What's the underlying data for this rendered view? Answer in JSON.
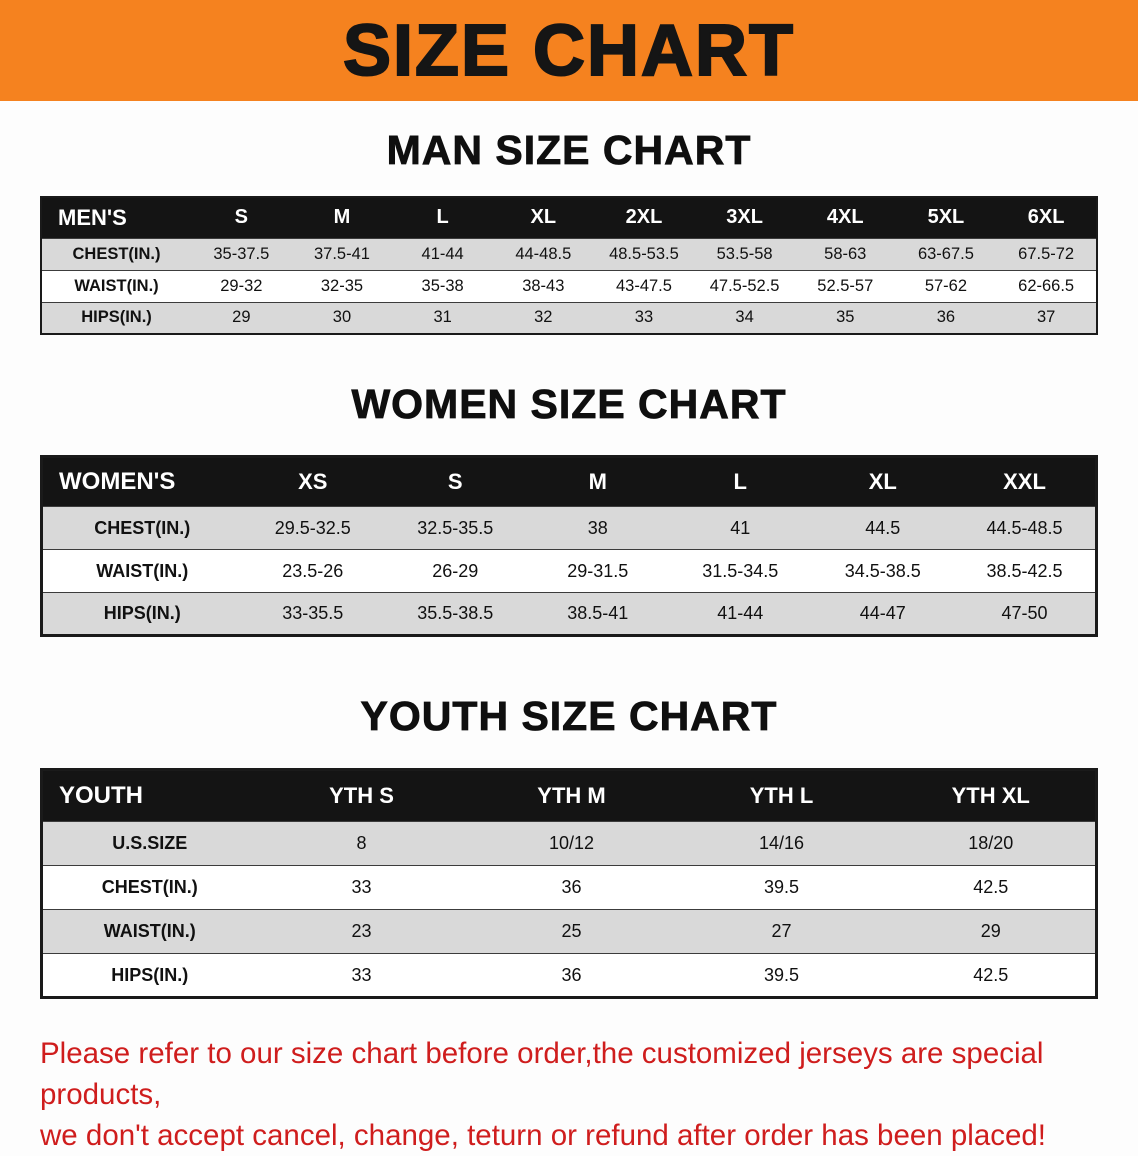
{
  "banner": {
    "title": "SIZE CHART"
  },
  "sections": [
    {
      "heading": "MAN SIZE CHART",
      "table": {
        "header": [
          "MEN'S",
          "S",
          "M",
          "L",
          "XL",
          "2XL",
          "3XL",
          "4XL",
          "5XL",
          "6XL"
        ],
        "rows": [
          {
            "label": "CHEST(IN.)",
            "values": [
              "35-37.5",
              "37.5-41",
              "41-44",
              "44-48.5",
              "48.5-53.5",
              "53.5-58",
              "58-63",
              "63-67.5",
              "67.5-72"
            ]
          },
          {
            "label": "WAIST(IN.)",
            "values": [
              "29-32",
              "32-35",
              "35-38",
              "38-43",
              "43-47.5",
              "47.5-52.5",
              "52.5-57",
              "57-62",
              "62-66.5"
            ]
          },
          {
            "label": "HIPS(IN.)",
            "values": [
              "29",
              "30",
              "31",
              "32",
              "33",
              "34",
              "35",
              "36",
              "37"
            ]
          }
        ]
      }
    },
    {
      "heading": "WOMEN SIZE CHART",
      "table": {
        "header": [
          "WOMEN'S",
          "XS",
          "S",
          "M",
          "L",
          "XL",
          "XXL"
        ],
        "rows": [
          {
            "label": "CHEST(IN.)",
            "values": [
              "29.5-32.5",
              "32.5-35.5",
              "38",
              "41",
              "44.5",
              "44.5-48.5"
            ]
          },
          {
            "label": "WAIST(IN.)",
            "values": [
              "23.5-26",
              "26-29",
              "29-31.5",
              "31.5-34.5",
              "34.5-38.5",
              "38.5-42.5"
            ]
          },
          {
            "label": "HIPS(IN.)",
            "values": [
              "33-35.5",
              "35.5-38.5",
              "38.5-41",
              "41-44",
              "44-47",
              "47-50"
            ]
          }
        ]
      }
    },
    {
      "heading": "YOUTH SIZE CHART",
      "table": {
        "header": [
          "YOUTH",
          "YTH S",
          "YTH M",
          "YTH L",
          "YTH XL"
        ],
        "rows": [
          {
            "label": "U.S.SIZE",
            "values": [
              "8",
              "10/12",
              "14/16",
              "18/20"
            ]
          },
          {
            "label": "CHEST(IN.)",
            "values": [
              "33",
              "36",
              "39.5",
              "42.5"
            ]
          },
          {
            "label": "WAIST(IN.)",
            "values": [
              "23",
              "25",
              "27",
              "29"
            ]
          },
          {
            "label": "HIPS(IN.)",
            "values": [
              "33",
              "36",
              "39.5",
              "42.5"
            ]
          }
        ]
      }
    }
  ],
  "disclaimer": {
    "line1": "Please refer to our size chart before order,the customized jerseys are special products,",
    "line2": "we don't accept cancel, change, teturn or refund after order has been placed!"
  },
  "colors": {
    "banner_bg": "#F5821F",
    "table_header_bg": "#141414",
    "row_stripe_gray": "#D9D9D9",
    "disclaimer_red": "#CF1D1D"
  }
}
